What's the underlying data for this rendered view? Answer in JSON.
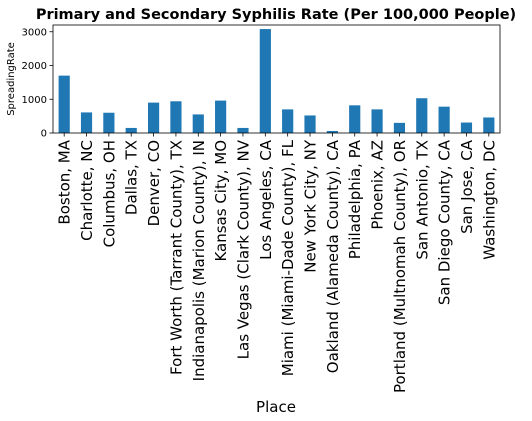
{
  "chart_data": {
    "type": "bar",
    "title": "Primary and Secondary Syphilis Rate (Per 100,000 People)",
    "xlabel": "Place",
    "ylabel": "SpreadingRate",
    "ylim": [
      0,
      3200
    ],
    "yticks": [
      0,
      1000,
      2000,
      3000
    ],
    "grid": false,
    "legend": "none",
    "bar_color": "#1f77b4",
    "categories": [
      "Boston, MA",
      "Charlotte, NC",
      "Columbus, OH",
      "Dallas, TX",
      "Denver, CO",
      "Fort Worth (Tarrant County), TX",
      "Indianapolis (Marion County), IN",
      "Kansas City, MO",
      "Las Vegas (Clark County), NV",
      "Los Angeles, CA",
      "Miami (Miami-Dade County), FL",
      "New York City, NY",
      "Oakland (Alameda County), CA",
      "Philadelphia, PA",
      "Phoenix, AZ",
      "Portland (Multnomah County), OR",
      "San Antonio, TX",
      "San Diego County, CA",
      "San Jose, CA",
      "Washington, DC"
    ],
    "values": [
      1700,
      610,
      600,
      150,
      900,
      940,
      550,
      960,
      150,
      3080,
      700,
      520,
      60,
      820,
      700,
      300,
      1030,
      780,
      310,
      460
    ]
  }
}
